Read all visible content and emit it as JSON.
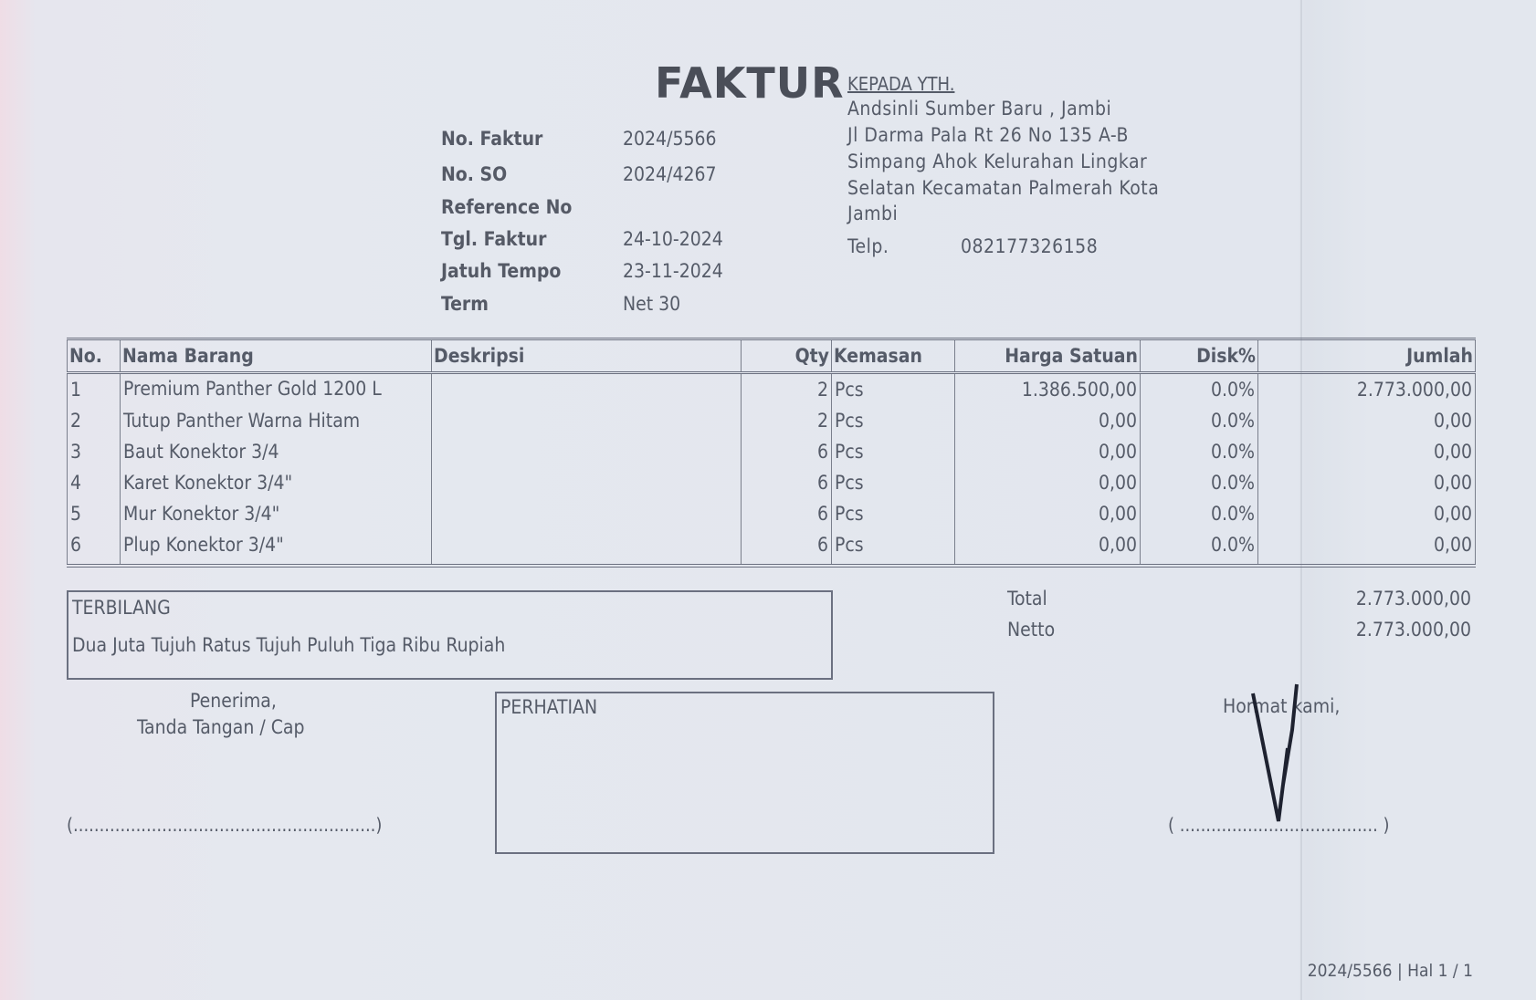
{
  "title": "FAKTUR",
  "recipient": {
    "heading": "KEPADA YTH.",
    "lines": [
      "Andsinli Sumber Baru , Jambi",
      "Jl Darma Pala Rt 26 No 135 A-B",
      "Simpang Ahok Kelurahan Lingkar",
      "Selatan Kecamatan Palmerah Kota",
      "Jambi"
    ],
    "phone_label": "Telp.",
    "phone": "082177326158"
  },
  "meta": [
    {
      "label": "No. Faktur",
      "value": "2024/5566"
    },
    {
      "label": "No. SO",
      "value": "2024/4267"
    },
    {
      "label": "Reference No",
      "value": ""
    },
    {
      "label": "Tgl. Faktur",
      "value": "24-10-2024"
    },
    {
      "label": "Jatuh Tempo",
      "value": "23-11-2024"
    },
    {
      "label": "Term",
      "value": "Net 30"
    }
  ],
  "table": {
    "headers": [
      "No.",
      "Nama Barang",
      "Deskripsi",
      "Qty",
      "Kemasan",
      "Harga Satuan",
      "Disk%",
      "Jumlah"
    ],
    "rows": [
      [
        "1",
        "Premium Panther Gold 1200 L",
        "",
        "2",
        "Pcs",
        "1.386.500,00",
        "0.0%",
        "2.773.000,00"
      ],
      [
        "2",
        "Tutup Panther Warna Hitam",
        "",
        "2",
        "Pcs",
        "0,00",
        "0.0%",
        "0,00"
      ],
      [
        "3",
        "Baut Konektor 3/4",
        "",
        "6",
        "Pcs",
        "0,00",
        "0.0%",
        "0,00"
      ],
      [
        "4",
        "Karet Konektor 3/4\"",
        "",
        "6",
        "Pcs",
        "0,00",
        "0.0%",
        "0,00"
      ],
      [
        "5",
        "Mur Konektor 3/4\"",
        "",
        "6",
        "Pcs",
        "0,00",
        "0.0%",
        "0,00"
      ],
      [
        "6",
        "Plup Konektor 3/4\"",
        "",
        "6",
        "Pcs",
        "0,00",
        "0.0%",
        "0,00"
      ]
    ]
  },
  "terbilang": {
    "label": "TERBILANG",
    "text": "Dua Juta Tujuh Ratus Tujuh Puluh Tiga Ribu Rupiah"
  },
  "totals": [
    {
      "label": "Total",
      "value": "2.773.000,00"
    },
    {
      "label": "Netto",
      "value": "2.773.000,00"
    }
  ],
  "receiver": {
    "line1": "Penerima,",
    "line2": "Tanda Tangan / Cap",
    "blank": "(..........................................................)"
  },
  "notice": {
    "label": "PERHATIAN"
  },
  "sender": {
    "label": "Hormat kami,",
    "blank": "( ...................................... )"
  },
  "footer": "2024/5566 | Hal 1 / 1"
}
